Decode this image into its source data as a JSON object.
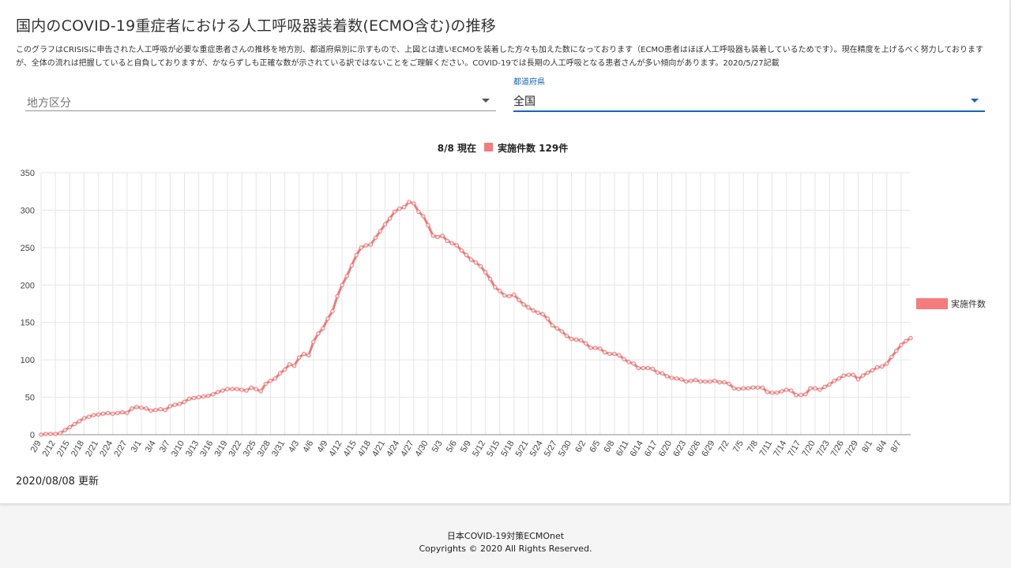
{
  "page": {
    "title": "国内のCOVID-19重症者における人工呼吸器装着数(ECMO含む)の推移",
    "description": "このグラフはCRISISに申告された人工呼吸が必要な重症患者さんの推移を地方別、都道府県別に示すもので、上図とは違いECMOを装着した方々も加えた数になっております（ECMO患者はほぼ人工呼吸器も装着しているためです）。現在精度を上げるべく努力しておりますが、全体の流れは把握していると自負しておりますが、かならずしも正確な数が示されている訳ではないことをご理解ください。COVID-19では長期の人工呼吸となる患者さんが多い傾向があります。2020/5/27記載",
    "updated": "2020/08/08 更新"
  },
  "filters": {
    "region": {
      "label": "地方区分",
      "value": ""
    },
    "prefecture": {
      "label": "都道府県",
      "value": "全国"
    }
  },
  "footer": {
    "org": "日本COVID-19対策ECMOnet",
    "copyright": "Copyrights © 2020 All Rights Reserved."
  },
  "chart_data": {
    "type": "line",
    "title": "8/8 現在",
    "subtitle_series": "実施件数 129件",
    "legend_position": "right",
    "legend_label": "実施件数",
    "grid": true,
    "ylim": [
      0,
      350
    ],
    "yticks": [
      0,
      50,
      100,
      150,
      200,
      250,
      300,
      350
    ],
    "xticks": [
      "2/9",
      "2/12",
      "2/15",
      "2/18",
      "2/21",
      "2/24",
      "2/27",
      "3/1",
      "3/4",
      "3/7",
      "3/10",
      "3/13",
      "3/16",
      "3/19",
      "3/22",
      "3/25",
      "3/28",
      "3/31",
      "4/3",
      "4/6",
      "4/9",
      "4/12",
      "4/15",
      "4/18",
      "4/21",
      "4/24",
      "4/27",
      "4/30",
      "5/3",
      "5/6",
      "5/9",
      "5/12",
      "5/15",
      "5/18",
      "5/21",
      "5/24",
      "5/27",
      "5/30",
      "6/2",
      "6/5",
      "6/8",
      "6/11",
      "6/14",
      "6/17",
      "6/20",
      "6/23",
      "6/26",
      "6/29",
      "7/2",
      "7/5",
      "7/8",
      "7/11",
      "7/14",
      "7/17",
      "7/20",
      "7/23",
      "7/26",
      "7/29",
      "8/1",
      "8/4",
      "8/7"
    ],
    "colors": {
      "line": "#ee7b7b",
      "legend": "#f47c7c"
    },
    "series": [
      {
        "name": "実施件数",
        "start_date": "2/9",
        "values": [
          0,
          1,
          1,
          1,
          2,
          6,
          10,
          14,
          18,
          22,
          24,
          26,
          27,
          28,
          29,
          28,
          29,
          30,
          29,
          35,
          37,
          36,
          35,
          32,
          33,
          34,
          33,
          38,
          40,
          41,
          44,
          48,
          49,
          50,
          51,
          52,
          54,
          57,
          59,
          61,
          61,
          61,
          60,
          59,
          63,
          61,
          58,
          68,
          72,
          75,
          82,
          87,
          94,
          92,
          103,
          108,
          106,
          124,
          135,
          142,
          155,
          165,
          185,
          200,
          212,
          226,
          240,
          250,
          253,
          254,
          263,
          272,
          281,
          289,
          298,
          302,
          304,
          311,
          309,
          298,
          292,
          280,
          266,
          264,
          266,
          259,
          256,
          253,
          246,
          240,
          234,
          230,
          225,
          217,
          208,
          197,
          192,
          186,
          185,
          187,
          180,
          174,
          170,
          166,
          163,
          161,
          155,
          146,
          142,
          138,
          132,
          128,
          127,
          126,
          122,
          116,
          116,
          115,
          110,
          108,
          108,
          106,
          101,
          97,
          95,
          89,
          89,
          89,
          88,
          83,
          82,
          78,
          76,
          75,
          74,
          71,
          72,
          73,
          71,
          71,
          71,
          72,
          70,
          70,
          68,
          62,
          61,
          62,
          62,
          63,
          63,
          63,
          57,
          56,
          56,
          58,
          60,
          59,
          53,
          53,
          54,
          62,
          62,
          60,
          64,
          67,
          72,
          75,
          79,
          80,
          80,
          74,
          79,
          83,
          86,
          90,
          91,
          95,
          104,
          112,
          120,
          125,
          129
        ]
      }
    ]
  }
}
